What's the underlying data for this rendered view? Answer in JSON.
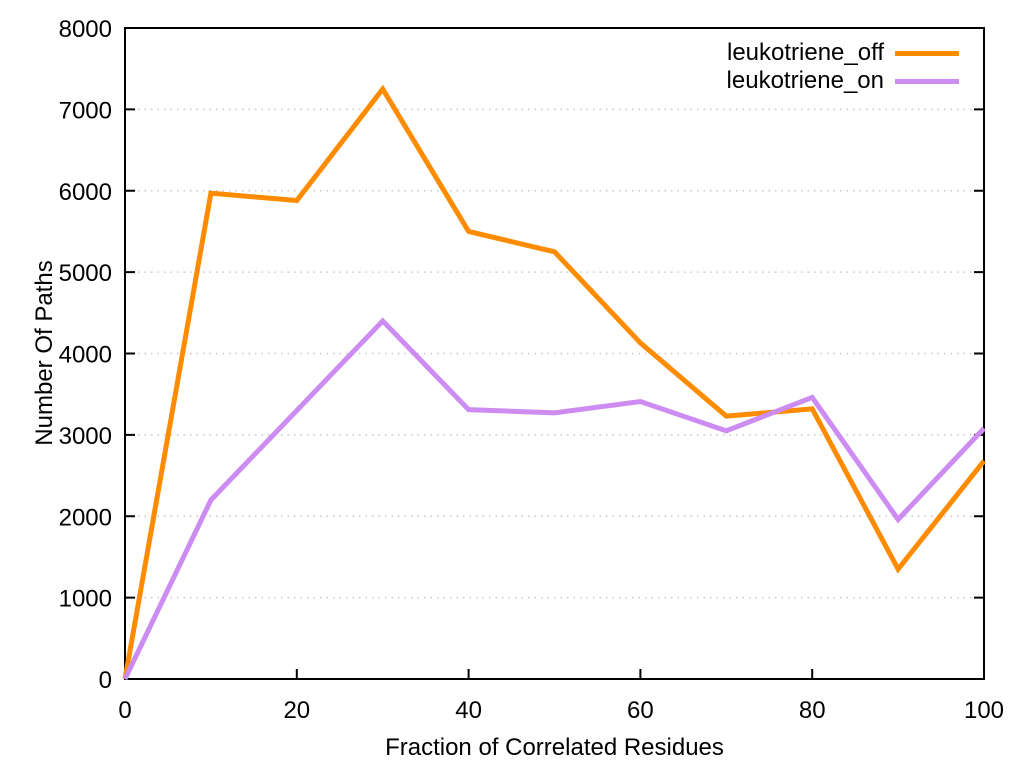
{
  "chart_data": {
    "type": "line",
    "title": "",
    "xlabel": "Fraction of Correlated Residues",
    "ylabel": "Number Of Paths",
    "x": [
      0,
      10,
      20,
      30,
      40,
      50,
      60,
      70,
      80,
      90,
      100
    ],
    "series": [
      {
        "name": "leukotriene_off",
        "color": "#ff8c00",
        "values": [
          0,
          5970,
          5880,
          7250,
          5500,
          5250,
          4130,
          3230,
          3320,
          1350,
          2680
        ]
      },
      {
        "name": "leukotriene_on",
        "color": "#cd8cf2",
        "values": [
          0,
          2200,
          3300,
          4400,
          3310,
          3270,
          3410,
          3050,
          3460,
          1960,
          3080
        ]
      }
    ],
    "xlim": [
      0,
      100
    ],
    "ylim": [
      0,
      8000
    ],
    "xticks": [
      0,
      20,
      40,
      60,
      80,
      100
    ],
    "yticks": [
      0,
      1000,
      2000,
      3000,
      4000,
      5000,
      6000,
      7000,
      8000
    ],
    "grid": "horizontal-dotted",
    "legend_position": "top-right-inside"
  },
  "colors": {
    "background": "#ffffff",
    "axis": "#000000",
    "grid": "#c8c8c8",
    "text": "#000000"
  }
}
